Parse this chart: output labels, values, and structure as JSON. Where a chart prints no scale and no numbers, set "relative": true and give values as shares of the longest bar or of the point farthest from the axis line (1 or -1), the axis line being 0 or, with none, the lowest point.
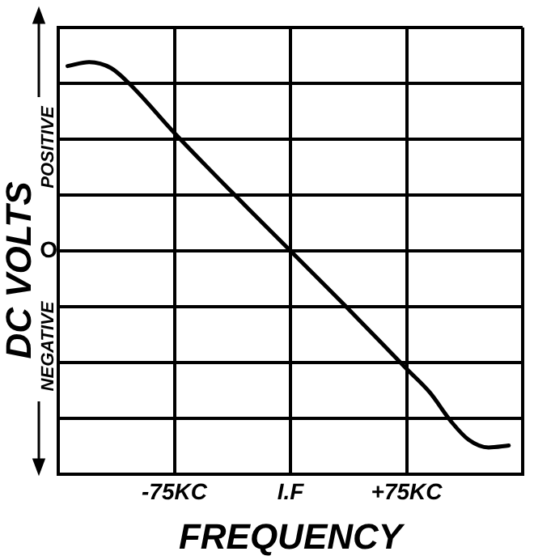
{
  "chart_data": {
    "type": "line",
    "xlabel": "FREQUENCY",
    "ylabel": "DC VOLTS",
    "relative": true,
    "grid": true,
    "legend": false,
    "marker": "none",
    "line_style": "solid",
    "x": [
      -144,
      -130,
      -116,
      -104,
      -75,
      -38,
      0,
      38,
      75,
      90,
      104,
      115,
      128,
      141
    ],
    "xlim": [
      -150,
      150
    ],
    "xticks": [
      {
        "value": -150,
        "label": null
      },
      {
        "value": -75,
        "label": "-75KC"
      },
      {
        "value": 0,
        "label": "I.F"
      },
      {
        "value": 75,
        "label": "+75KC"
      },
      {
        "value": 150,
        "label": null
      }
    ],
    "series": [
      {
        "color": "#000000",
        "values": [
          0.94,
          0.96,
          0.93,
          0.85,
          0.6,
          0.3,
          0,
          -0.3,
          -0.6,
          -0.72,
          -0.87,
          -0.96,
          -1,
          -0.99
        ]
      }
    ],
    "annotations": [
      "POSITIVE",
      "NEGATIVE",
      "O"
    ]
  }
}
